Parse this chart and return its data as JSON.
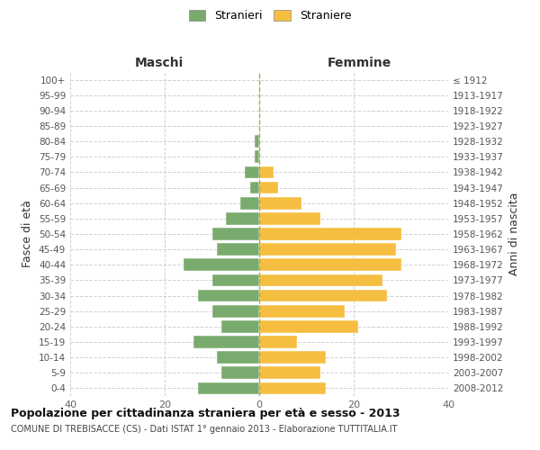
{
  "age_groups": [
    "0-4",
    "5-9",
    "10-14",
    "15-19",
    "20-24",
    "25-29",
    "30-34",
    "35-39",
    "40-44",
    "45-49",
    "50-54",
    "55-59",
    "60-64",
    "65-69",
    "70-74",
    "75-79",
    "80-84",
    "85-89",
    "90-94",
    "95-99",
    "100+"
  ],
  "birth_years": [
    "2008-2012",
    "2003-2007",
    "1998-2002",
    "1993-1997",
    "1988-1992",
    "1983-1987",
    "1978-1982",
    "1973-1977",
    "1968-1972",
    "1963-1967",
    "1958-1962",
    "1953-1957",
    "1948-1952",
    "1943-1947",
    "1938-1942",
    "1933-1937",
    "1928-1932",
    "1923-1927",
    "1918-1922",
    "1913-1917",
    "≤ 1912"
  ],
  "maschi": [
    13,
    8,
    9,
    14,
    8,
    10,
    13,
    10,
    16,
    9,
    10,
    7,
    4,
    2,
    3,
    1,
    1,
    0,
    0,
    0,
    0
  ],
  "femmine": [
    14,
    13,
    14,
    8,
    21,
    18,
    27,
    26,
    30,
    29,
    30,
    13,
    9,
    4,
    3,
    0,
    0,
    0,
    0,
    0,
    0
  ],
  "color_maschi": "#7aab6e",
  "color_femmine": "#f5be41",
  "title": "Popolazione per cittadinanza straniera per età e sesso - 2013",
  "subtitle": "COMUNE DI TREBISACCE (CS) - Dati ISTAT 1° gennaio 2013 - Elaborazione TUTTITALIA.IT",
  "label_maschi": "Maschi",
  "label_femmine": "Femmine",
  "ylabel_left": "Fasce di età",
  "ylabel_right": "Anni di nascita",
  "legend_stranieri": "Stranieri",
  "legend_straniere": "Straniere",
  "xlim": 40,
  "background_color": "#ffffff",
  "grid_color": "#cccccc"
}
